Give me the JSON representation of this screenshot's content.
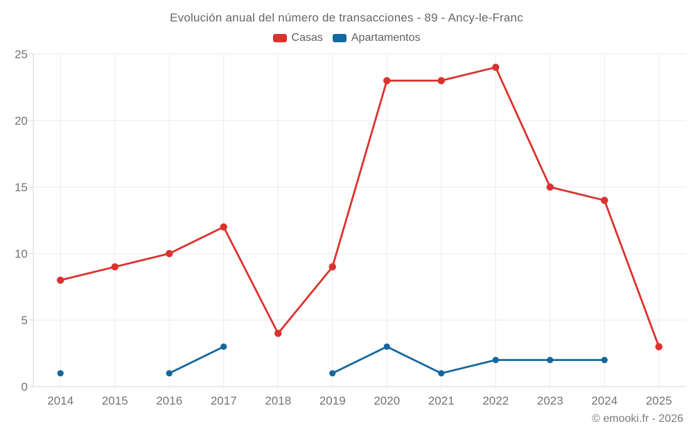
{
  "header": {
    "title": "Evolución anual del número de transacciones - 89 - Ancy-le-Franc"
  },
  "legend": [
    {
      "label": "Casas",
      "color": "#db322e"
    },
    {
      "label": "Apartamentos",
      "color": "#15689e"
    }
  ],
  "footer": {
    "attribution": "© emooki.fr - 2026"
  },
  "colors": {
    "grid": "#ebebeb",
    "axis_line": "#d6d6d6",
    "tick": "#d6d6d6",
    "axis_text": "#737373",
    "background": "#ffffff"
  },
  "chart_data": {
    "type": "line",
    "title": "Evolución anual del número de transacciones - 89 - Ancy-le-Franc",
    "x": [
      "2014",
      "2015",
      "2016",
      "2017",
      "2018",
      "2019",
      "2020",
      "2021",
      "2022",
      "2023",
      "2024",
      "2025"
    ],
    "series": [
      {
        "name": "Casas",
        "color": "#db322e",
        "values": [
          8,
          9,
          10,
          12,
          4,
          9,
          23,
          23,
          24,
          15,
          14,
          3
        ]
      },
      {
        "name": "Apartamentos",
        "color": "#15689e",
        "values": [
          1,
          null,
          1,
          3,
          null,
          1,
          3,
          1,
          2,
          2,
          2,
          null
        ]
      }
    ],
    "xlabel": "",
    "ylabel": "",
    "ylim": [
      0,
      25
    ],
    "y_ticks": [
      0,
      5,
      10,
      15,
      20,
      25
    ],
    "grid": true,
    "legend_position": "top"
  }
}
